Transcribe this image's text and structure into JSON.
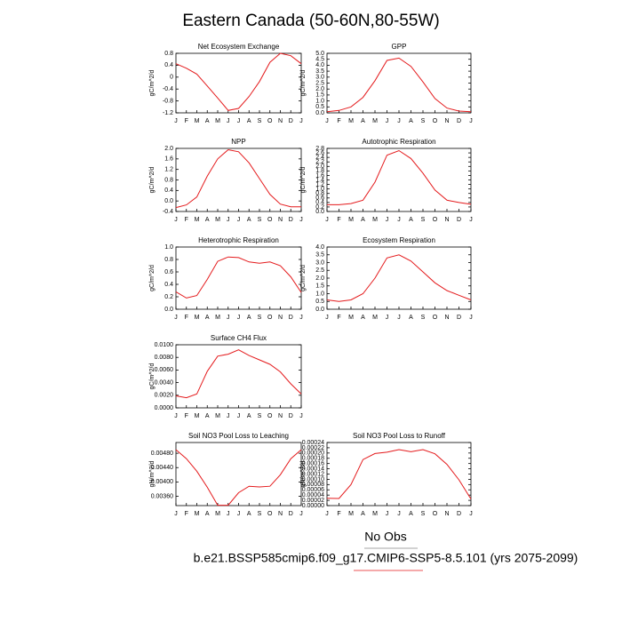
{
  "title": "Eastern Canada (50-60N,80-55W)",
  "footer": {
    "obs": "No Obs",
    "case": "b.e21.BSSP585cmip6.f09_g17.CMIP6-SSP5-8.5.101 (yrs 2075-2099)"
  },
  "chart_data": [
    {
      "type": "line",
      "title": "Net Ecosystem Exchange",
      "y_label": "gC/m^2/d",
      "color": "#e41a1c",
      "categories": [
        "J",
        "F",
        "M",
        "A",
        "M",
        "J",
        "J",
        "A",
        "S",
        "O",
        "N",
        "D",
        "J"
      ],
      "values": [
        0.45,
        0.3,
        0.1,
        -0.3,
        -0.7,
        -1.12,
        -1.05,
        -0.65,
        -0.15,
        0.5,
        0.8,
        0.72,
        0.45
      ],
      "ylim": [
        -1.2,
        0.8
      ],
      "yticks": [
        -1.2,
        -0.8,
        -0.4,
        0,
        0.4,
        0.8
      ]
    },
    {
      "type": "line",
      "title": "GPP",
      "y_label": "gC/m^2/d",
      "color": "#e41a1c",
      "categories": [
        "J",
        "F",
        "M",
        "A",
        "M",
        "J",
        "J",
        "A",
        "S",
        "O",
        "N",
        "D",
        "J"
      ],
      "values": [
        0.1,
        0.2,
        0.5,
        1.3,
        2.7,
        4.4,
        4.6,
        3.9,
        2.6,
        1.2,
        0.4,
        0.15,
        0.1
      ],
      "ylim": [
        0,
        5
      ],
      "yticks": [
        {
          "value": 0,
          "label": "0.0"
        },
        0.5,
        {
          "value": 1,
          "label": "1.0"
        },
        1.5,
        {
          "value": 2,
          "label": "2.0"
        },
        2.5,
        {
          "value": 3,
          "label": "3.0"
        },
        3.5,
        {
          "value": 4,
          "label": "4.0"
        },
        4.5,
        {
          "value": 5,
          "label": "5.0"
        }
      ]
    },
    {
      "type": "line",
      "title": "NPP",
      "y_label": "gC/m^2/d",
      "color": "#e41a1c",
      "categories": [
        "J",
        "F",
        "M",
        "A",
        "M",
        "J",
        "J",
        "A",
        "S",
        "O",
        "N",
        "D",
        "J"
      ],
      "values": [
        -0.25,
        -0.15,
        0.15,
        0.95,
        1.6,
        1.95,
        1.87,
        1.45,
        0.85,
        0.25,
        -0.12,
        -0.22,
        -0.22
      ],
      "ylim": [
        -0.4,
        2.0
      ],
      "yticks": [
        -0.4,
        {
          "value": 0,
          "label": "0.0"
        },
        0.4,
        0.8,
        1.2,
        1.6,
        {
          "value": 2,
          "label": "2.0"
        }
      ]
    },
    {
      "type": "line",
      "title": "Autotrophic Respiration",
      "y_label": "gC/m^2/d",
      "color": "#e41a1c",
      "categories": [
        "J",
        "F",
        "M",
        "A",
        "M",
        "J",
        "J",
        "A",
        "S",
        "O",
        "N",
        "D",
        "J"
      ],
      "values": [
        0.3,
        0.3,
        0.35,
        0.5,
        1.3,
        2.5,
        2.7,
        2.35,
        1.7,
        0.95,
        0.5,
        0.4,
        0.32
      ],
      "ylim": [
        0,
        2.8
      ],
      "yticks": [
        {
          "value": 0,
          "label": "0.0"
        },
        0.2,
        0.4,
        0.6,
        0.8,
        {
          "value": 1,
          "label": "1.0"
        },
        1.2,
        1.4,
        1.6,
        1.8,
        {
          "value": 2,
          "label": "2.0"
        },
        2.2,
        2.4,
        2.6,
        2.8
      ]
    },
    {
      "type": "line",
      "title": "Heterotrophic Respiration",
      "y_label": "gC/m^2/d",
      "color": "#e41a1c",
      "categories": [
        "J",
        "F",
        "M",
        "A",
        "M",
        "J",
        "J",
        "A",
        "S",
        "O",
        "N",
        "D",
        "J"
      ],
      "values": [
        0.28,
        0.18,
        0.22,
        0.48,
        0.77,
        0.84,
        0.83,
        0.76,
        0.74,
        0.76,
        0.7,
        0.52,
        0.27
      ],
      "ylim": [
        0,
        1
      ],
      "yticks": [
        {
          "value": 0,
          "label": "0.0"
        },
        0.2,
        0.4,
        0.6,
        0.8,
        {
          "value": 1,
          "label": "1.0"
        }
      ]
    },
    {
      "type": "line",
      "title": "Ecosystem Respiration",
      "y_label": "gC/m^2/d",
      "color": "#e41a1c",
      "categories": [
        "J",
        "F",
        "M",
        "A",
        "M",
        "J",
        "J",
        "A",
        "S",
        "O",
        "N",
        "D",
        "J"
      ],
      "values": [
        0.6,
        0.5,
        0.6,
        1.0,
        2.0,
        3.3,
        3.5,
        3.1,
        2.4,
        1.7,
        1.2,
        0.9,
        0.6
      ],
      "ylim": [
        0,
        4
      ],
      "yticks": [
        {
          "value": 0,
          "label": "0.0"
        },
        0.5,
        {
          "value": 1,
          "label": "1.0"
        },
        1.5,
        {
          "value": 2,
          "label": "2.0"
        },
        2.5,
        {
          "value": 3,
          "label": "3.0"
        },
        3.5,
        {
          "value": 4,
          "label": "4.0"
        }
      ]
    },
    {
      "type": "line",
      "title": "Surface CH4 Flux",
      "y_label": "gC/m^2/d",
      "color": "#e41a1c",
      "categories": [
        "J",
        "F",
        "M",
        "A",
        "M",
        "J",
        "J",
        "A",
        "S",
        "O",
        "N",
        "D",
        "J"
      ],
      "values": [
        0.0019,
        0.0016,
        0.0022,
        0.0058,
        0.0082,
        0.0085,
        0.0092,
        0.0083,
        0.0076,
        0.0069,
        0.0057,
        0.0038,
        0.0022
      ],
      "ylim": [
        0,
        0.01
      ],
      "yticks": [
        {
          "value": 0,
          "label": "0.0000"
        },
        {
          "value": 0.002,
          "label": "0.0020"
        },
        {
          "value": 0.004,
          "label": "0.0040"
        },
        {
          "value": 0.006,
          "label": "0.0060"
        },
        {
          "value": 0.008,
          "label": "0.0080"
        },
        {
          "value": 0.01,
          "label": "0.0100"
        }
      ]
    },
    {
      "type": "line",
      "title": "Soil NO3 Pool Loss to Leaching",
      "y_label": "gN/m^2/d",
      "color": "#e41a1c",
      "categories": [
        "J",
        "F",
        "M",
        "A",
        "M",
        "J",
        "J",
        "A",
        "S",
        "O",
        "N",
        "D",
        "J"
      ],
      "values": [
        0.0049,
        0.00465,
        0.0043,
        0.00385,
        0.00335,
        0.00335,
        0.0037,
        0.00388,
        0.00386,
        0.00388,
        0.0042,
        0.00465,
        0.0049
      ],
      "ylim": [
        0.00334,
        0.0051
      ],
      "yticks": [
        {
          "value": 0.0036,
          "label": "0.00360"
        },
        {
          "value": 0.004,
          "label": "0.00400"
        },
        {
          "value": 0.0044,
          "label": "0.00440"
        },
        {
          "value": 0.0048,
          "label": "0.00480"
        }
      ]
    },
    {
      "type": "line",
      "title": "Soil NO3 Pool Loss to Runoff",
      "y_label": "gN/m^2/d",
      "color": "#e41a1c",
      "categories": [
        "J",
        "F",
        "M",
        "A",
        "M",
        "J",
        "J",
        "A",
        "S",
        "O",
        "N",
        "D",
        "J"
      ],
      "values": [
        2.8e-05,
        2.7e-05,
        8e-05,
        0.000175,
        0.000198,
        0.000203,
        0.000213,
        0.000205,
        0.000213,
        0.000197,
        0.000157,
        9.8e-05,
        2.5e-05
      ],
      "ylim": [
        0,
        0.00024
      ],
      "yticks": [
        {
          "value": 0,
          "label": "0.00000"
        },
        {
          "value": 2e-05,
          "label": "0.00002"
        },
        {
          "value": 4e-05,
          "label": "0.00004"
        },
        {
          "value": 6e-05,
          "label": "0.00006"
        },
        {
          "value": 8e-05,
          "label": "0.00008"
        },
        {
          "value": 0.0001,
          "label": "0.00010"
        },
        {
          "value": 0.00012,
          "label": "0.00012"
        },
        {
          "value": 0.00014,
          "label": "0.00014"
        },
        {
          "value": 0.00016,
          "label": "0.00016"
        },
        {
          "value": 0.00018,
          "label": "0.00018"
        },
        {
          "value": 0.0002,
          "label": "0.00020"
        },
        {
          "value": 0.00022,
          "label": "0.00022"
        },
        {
          "value": 0.00024,
          "label": "0.00024"
        }
      ]
    }
  ]
}
